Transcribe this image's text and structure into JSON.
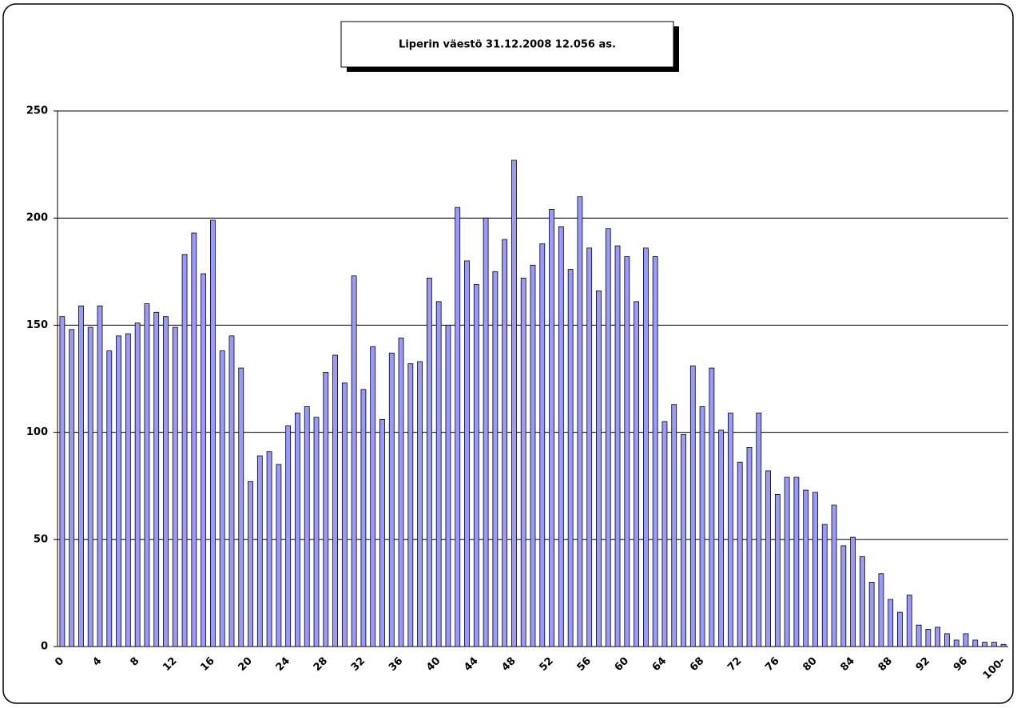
{
  "chart_data": {
    "type": "bar",
    "title": "Liperin väestö 31.12.2008  12.056 as.",
    "categories": [
      "0",
      null,
      null,
      null,
      "4",
      null,
      null,
      null,
      "8",
      null,
      null,
      null,
      "12",
      null,
      null,
      null,
      "16",
      null,
      null,
      null,
      "20",
      null,
      null,
      null,
      "24",
      null,
      null,
      null,
      "28",
      null,
      null,
      null,
      "32",
      null,
      null,
      null,
      "36",
      null,
      null,
      null,
      "40",
      null,
      null,
      null,
      "44",
      null,
      null,
      null,
      "48",
      null,
      null,
      null,
      "52",
      null,
      null,
      null,
      "56",
      null,
      null,
      null,
      "60",
      null,
      null,
      null,
      "64",
      null,
      null,
      null,
      "68",
      null,
      null,
      null,
      "72",
      null,
      null,
      null,
      "76",
      null,
      null,
      null,
      "80",
      null,
      null,
      null,
      "84",
      null,
      null,
      null,
      "88",
      null,
      null,
      null,
      "92",
      null,
      null,
      null,
      "96",
      null,
      null,
      null,
      "100-"
    ],
    "values": [
      154,
      148,
      159,
      149,
      159,
      138,
      145,
      146,
      151,
      160,
      156,
      154,
      149,
      183,
      193,
      174,
      199,
      138,
      145,
      130,
      77,
      89,
      91,
      85,
      103,
      109,
      112,
      107,
      128,
      136,
      123,
      173,
      120,
      140,
      106,
      137,
      144,
      132,
      133,
      172,
      161,
      150,
      205,
      180,
      169,
      200,
      175,
      190,
      227,
      172,
      178,
      188,
      204,
      196,
      176,
      210,
      186,
      166,
      195,
      187,
      182,
      161,
      186,
      182,
      105,
      113,
      99,
      131,
      112,
      130,
      101,
      109,
      86,
      93,
      109,
      82,
      71,
      79,
      79,
      73,
      72,
      57,
      66,
      47,
      51,
      42,
      30,
      34,
      22,
      16,
      24,
      10,
      8,
      9,
      6,
      3,
      6,
      3,
      2,
      2,
      1
    ],
    "color": "#9999ff",
    "ylim": [
      0,
      250
    ],
    "yticks": [
      0,
      50,
      100,
      150,
      200,
      250
    ],
    "grid": true
  }
}
